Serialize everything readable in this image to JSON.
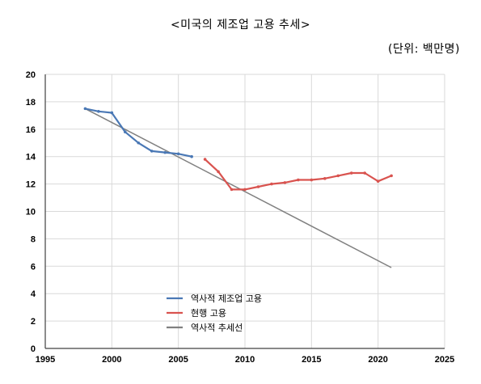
{
  "chart_data": {
    "type": "line",
    "title": "<미국의 제조업 고용 추세>",
    "subtitle": "(단위: 백만명)",
    "xlabel": "",
    "ylabel": "",
    "xlim": [
      1995,
      2025
    ],
    "ylim": [
      0,
      20
    ],
    "x_ticks": [
      1995,
      2000,
      2005,
      2010,
      2015,
      2020,
      2025
    ],
    "y_ticks": [
      0,
      2,
      4,
      6,
      8,
      10,
      12,
      14,
      16,
      18,
      20
    ],
    "grid": true,
    "legend_position": "lower-left",
    "series": [
      {
        "name": "역사적 제조업 고용",
        "color": "#4a78b5",
        "points": [
          [
            1998,
            17.5
          ],
          [
            1999,
            17.3
          ],
          [
            2000,
            17.2
          ],
          [
            2001,
            15.8
          ],
          [
            2002,
            15.0
          ],
          [
            2003,
            14.4
          ],
          [
            2004,
            14.3
          ],
          [
            2005,
            14.2
          ],
          [
            2006,
            14.0
          ]
        ]
      },
      {
        "name": "현행 고용",
        "color": "#d9534f",
        "points": [
          [
            2007,
            13.8
          ],
          [
            2008,
            12.9
          ],
          [
            2009,
            11.6
          ],
          [
            2010,
            11.6
          ],
          [
            2011,
            11.8
          ],
          [
            2012,
            12.0
          ],
          [
            2013,
            12.1
          ],
          [
            2014,
            12.3
          ],
          [
            2015,
            12.3
          ],
          [
            2016,
            12.4
          ],
          [
            2017,
            12.6
          ],
          [
            2018,
            12.8
          ],
          [
            2019,
            12.8
          ],
          [
            2020,
            12.2
          ],
          [
            2021,
            12.6
          ]
        ]
      },
      {
        "name": "역사적 추세선",
        "color": "#808080",
        "points": [
          [
            1998,
            17.5
          ],
          [
            2021,
            5.9
          ]
        ]
      }
    ]
  }
}
